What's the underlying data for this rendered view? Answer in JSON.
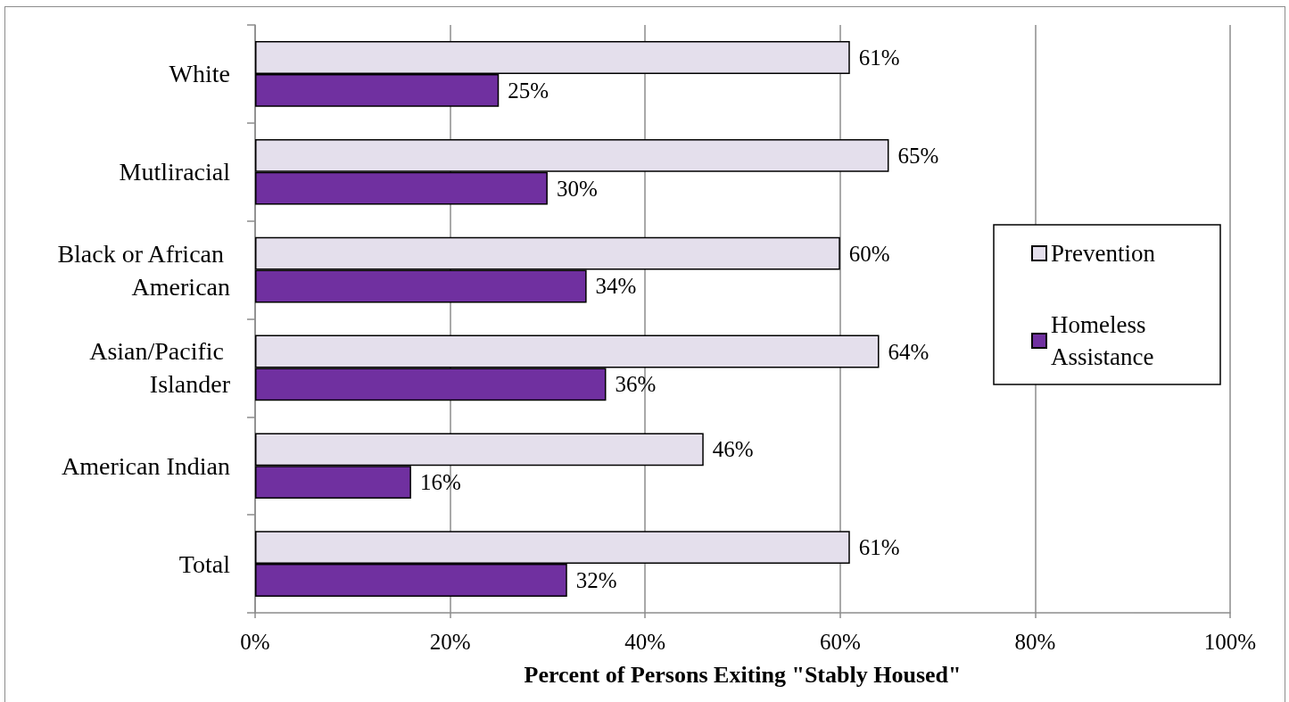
{
  "chart_data": {
    "type": "bar",
    "orientation": "horizontal",
    "categories": [
      "White",
      "Mutliracial",
      "Black or African American",
      "Asian/Pacific Islander",
      "American Indian",
      "Total"
    ],
    "series": [
      {
        "name": "Prevention",
        "color": "#e4dfec",
        "values": [
          61,
          65,
          60,
          64,
          46,
          61
        ],
        "value_labels": [
          "61%",
          "65%",
          "60%",
          "64%",
          "46%",
          "61%"
        ]
      },
      {
        "name": "Homeless Assistance",
        "color": "#7030a0",
        "values": [
          25,
          30,
          34,
          36,
          16,
          32
        ],
        "value_labels": [
          "25%",
          "30%",
          "34%",
          "36%",
          "16%",
          "32%"
        ]
      }
    ],
    "xlim": [
      0,
      100
    ],
    "xticks": [
      {
        "value": 0,
        "label": "0%"
      },
      {
        "value": 20,
        "label": "20%"
      },
      {
        "value": 40,
        "label": "40%"
      },
      {
        "value": 60,
        "label": "60%"
      },
      {
        "value": 80,
        "label": "80%"
      },
      {
        "value": 100,
        "label": "100%"
      }
    ],
    "xlabel": "Percent of Persons Exiting \"Stably Housed\"",
    "grid": "x",
    "legend": "right"
  }
}
